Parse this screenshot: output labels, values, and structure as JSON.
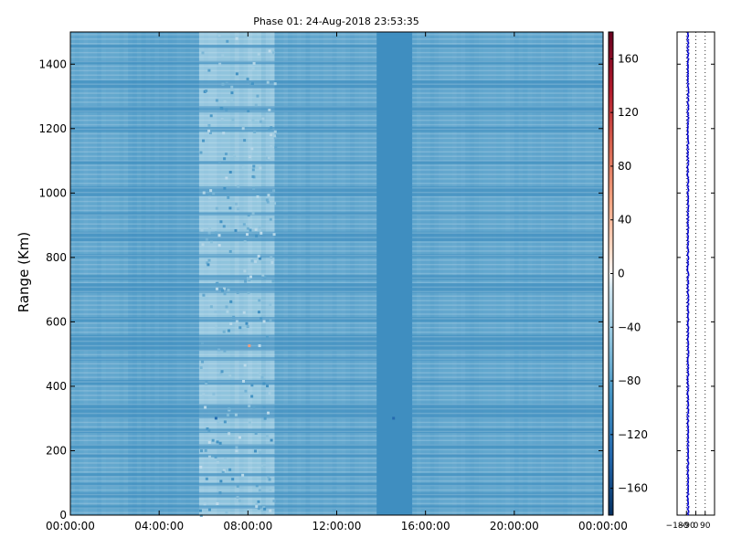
{
  "chart_data": [
    {
      "type": "heatmap",
      "title": "Phase 01: 24-Aug-2018 23:53:35",
      "ylabel": "Range (Km)",
      "xlabel": "",
      "x_ticks": [
        "00:00:00",
        "04:00:00",
        "08:00:00",
        "12:00:00",
        "16:00:00",
        "20:00:00",
        "00:00:00"
      ],
      "x_tick_hours": [
        0,
        4,
        8,
        12,
        16,
        20,
        24
      ],
      "xlim_hours": [
        0,
        24
      ],
      "ylim": [
        0,
        1500
      ],
      "y_ticks": [
        0,
        200,
        400,
        600,
        800,
        1000,
        1200,
        1400
      ],
      "colorscale": "RdBu_r",
      "colorbar": {
        "ticks": [
          -160,
          -120,
          -80,
          -40,
          0,
          40,
          80,
          120,
          160
        ],
        "range": [
          -180,
          180
        ]
      },
      "typical_value": -75,
      "bright_time_band_hours": [
        5.8,
        9.2
      ],
      "light_time_band_hours": [
        2.5,
        5.8
      ],
      "dark_time_band_hours": [
        13.8,
        15.4
      ],
      "dark_time_band_value": -95,
      "dark_range_bands_km": [
        [
          20,
          30
        ],
        [
          55,
          70
        ],
        [
          90,
          100
        ],
        [
          120,
          130
        ],
        [
          180,
          190
        ],
        [
          205,
          220
        ],
        [
          255,
          268
        ],
        [
          300,
          345
        ],
        [
          405,
          420
        ],
        [
          480,
          490
        ],
        [
          510,
          560
        ],
        [
          600,
          615
        ],
        [
          690,
          720
        ],
        [
          730,
          745
        ],
        [
          800,
          810
        ],
        [
          850,
          880
        ],
        [
          930,
          940
        ],
        [
          990,
          1020
        ],
        [
          1090,
          1100
        ],
        [
          1190,
          1205
        ],
        [
          1250,
          1270
        ],
        [
          1325,
          1350
        ],
        [
          1400,
          1410
        ],
        [
          1450,
          1460
        ]
      ],
      "grid": false
    },
    {
      "type": "scatter",
      "title": "",
      "ylim": [
        0,
        1500
      ],
      "xlim": [
        -180,
        180
      ],
      "x_ticks": [
        "−180",
        "−90",
        "0",
        "90"
      ],
      "x_tick_values": [
        -180,
        -90,
        0,
        90
      ],
      "points_center_x": -75,
      "points_spread_x": 6,
      "points_color": "#0000cc",
      "reference_lines_x": [
        -90,
        0,
        90
      ]
    }
  ]
}
